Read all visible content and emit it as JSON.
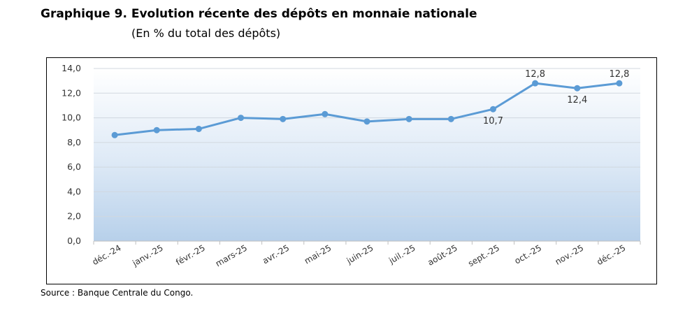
{
  "chart_data": {
    "type": "line",
    "title": "Graphique 9. Evolution récente des dépôts en monnaie nationale",
    "subtitle": "(En % du total des dépôts)",
    "source": "Source : Banque Centrale du Congo.",
    "categories": [
      "déc.-24",
      "janv.-25",
      "févr.-25",
      "mars-25",
      "avr.-25",
      "mai-25",
      "juin-25",
      "juil.-25",
      "août-25",
      "sept.-25",
      "oct.-25",
      "nov.-25",
      "déc.-25"
    ],
    "values": [
      8.6,
      9.0,
      9.1,
      10.0,
      9.9,
      10.3,
      9.7,
      9.9,
      9.9,
      10.7,
      12.8,
      12.4,
      12.8
    ],
    "ylim": [
      0,
      14
    ],
    "ytick_labels": [
      "0,0",
      "2,0",
      "4,0",
      "6,0",
      "8,0",
      "10,0",
      "12,0",
      "14,0"
    ],
    "data_labels": [
      {
        "index": 9,
        "text": "10,7",
        "placement": "below"
      },
      {
        "index": 10,
        "text": "12,8",
        "placement": "above"
      },
      {
        "index": 11,
        "text": "12,4",
        "placement": "below"
      },
      {
        "index": 12,
        "text": "12,8",
        "placement": "above"
      }
    ],
    "line_color": "#5B9BD5",
    "grid": true,
    "legend": false
  }
}
